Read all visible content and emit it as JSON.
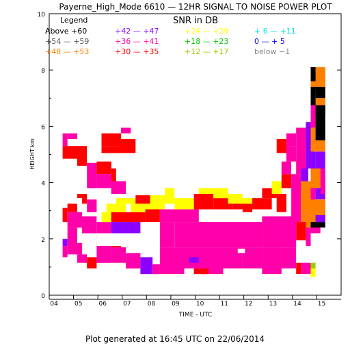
{
  "chart_data": {
    "type": "heatmap",
    "title": "Payerne_High_Mode 6610 — 12HR SIGNAL TO NOISE POWER PLOT",
    "subtitle": "SNR in DB",
    "xlabel": "TIME - UTC",
    "ylabel": "HEIGHT km",
    "xlim": [
      3.8,
      15.8
    ],
    "ylim": [
      0,
      10
    ],
    "x_tick_labels": [
      "04",
      "05",
      "06",
      "07",
      "08",
      "09",
      "10",
      "11",
      "12",
      "13",
      "14",
      "15"
    ],
    "y_tick_labels": [
      "0",
      "2",
      "4",
      "6",
      "8",
      "10"
    ],
    "legend_title": "Legend",
    "legend": [
      {
        "label": "Above +60",
        "color": "#000000"
      },
      {
        "label": "+54 — +59",
        "color": "#555555"
      },
      {
        "label": "+48 — +53",
        "color": "#ff7f00"
      },
      {
        "label": "+42 — +47",
        "color": "#8b00ff"
      },
      {
        "label": "+36 — +41",
        "color": "#ff00aa"
      },
      {
        "label": "+30 — +35",
        "color": "#ff0000"
      },
      {
        "label": "+24 — +29",
        "color": "#ffff00"
      },
      {
        "label": "+18 — +23",
        "color": "#00cc00"
      },
      {
        "label": "+12 — +17",
        "color": "#99cc00"
      },
      {
        "label": "+ 6 — +11",
        "color": "#00e5e5"
      },
      {
        "label": "0 — + 5",
        "color": "#0000ff"
      },
      {
        "label": "below −1",
        "color": "#888888"
      }
    ],
    "cells": [
      {
        "x": [
          4.35,
          4.55
        ],
        "y": [
          5.3,
          5.75
        ],
        "c": 4
      },
      {
        "x": [
          4.55,
          4.95
        ],
        "y": [
          5.55,
          5.75
        ],
        "c": 4
      },
      {
        "x": [
          4.35,
          4.95
        ],
        "y": [
          4.85,
          5.3
        ],
        "c": 5
      },
      {
        "x": [
          4.95,
          5.35
        ],
        "y": [
          4.6,
          5.3
        ],
        "c": 5
      },
      {
        "x": [
          5.35,
          5.75
        ],
        "y": [
          3.8,
          4.7
        ],
        "c": 4
      },
      {
        "x": [
          5.75,
          6.35
        ],
        "y": [
          4.3,
          4.75
        ],
        "c": 5
      },
      {
        "x": [
          6.35,
          6.55
        ],
        "y": [
          4.05,
          4.5
        ],
        "c": 5
      },
      {
        "x": [
          5.75,
          6.35
        ],
        "y": [
          3.8,
          4.3
        ],
        "c": 4
      },
      {
        "x": [
          6.35,
          6.95
        ],
        "y": [
          3.6,
          4.05
        ],
        "c": 4
      },
      {
        "x": [
          5.95,
          6.75
        ],
        "y": [
          5.3,
          5.75
        ],
        "c": 5
      },
      {
        "x": [
          6.75,
          7.35
        ],
        "y": [
          5.05,
          5.55
        ],
        "c": 5
      },
      {
        "x": [
          5.95,
          6.75
        ],
        "y": [
          5.05,
          5.3
        ],
        "c": 5
      },
      {
        "x": [
          6.75,
          7.15
        ],
        "y": [
          5.75,
          5.95
        ],
        "c": 4
      },
      {
        "x": [
          4.95,
          5.35
        ],
        "y": [
          3.25,
          3.6
        ],
        "c": 5
      },
      {
        "x": [
          5.35,
          5.75
        ],
        "y": [
          2.95,
          3.4
        ],
        "c": 4
      },
      {
        "x": [
          4.55,
          4.95
        ],
        "y": [
          2.95,
          3.25
        ],
        "c": 5
      },
      {
        "x": [
          4.35,
          4.55
        ],
        "y": [
          2.6,
          3.1
        ],
        "c": 5
      },
      {
        "x": [
          4.55,
          5.15
        ],
        "y": [
          2.4,
          2.95
        ],
        "c": 4
      },
      {
        "x": [
          5.15,
          5.75
        ],
        "y": [
          2.2,
          2.8
        ],
        "c": 4
      },
      {
        "x": [
          4.55,
          4.95
        ],
        "y": [
          1.85,
          2.4
        ],
        "c": 4
      },
      {
        "x": [
          4.35,
          4.55
        ],
        "y": [
          1.75,
          2.0
        ],
        "c": 3
      },
      {
        "x": [
          4.35,
          4.55
        ],
        "y": [
          1.35,
          1.75
        ],
        "c": 4
      },
      {
        "x": [
          4.55,
          5.15
        ],
        "y": [
          1.45,
          1.85
        ],
        "c": 4
      },
      {
        "x": [
          4.95,
          5.35
        ],
        "y": [
          1.15,
          1.45
        ],
        "c": 4
      },
      {
        "x": [
          5.35,
          5.75
        ],
        "y": [
          0.95,
          1.35
        ],
        "c": 5
      },
      {
        "x": [
          5.75,
          6.35
        ],
        "y": [
          1.15,
          2.2
        ],
        "c": 4
      },
      {
        "x": [
          6.35,
          6.95
        ],
        "y": [
          1.15,
          1.7
        ],
        "c": 4
      },
      {
        "x": [
          6.95,
          7.55
        ],
        "y": [
          0.95,
          1.5
        ],
        "c": 4
      },
      {
        "x": [
          7.55,
          8.05
        ],
        "y": [
          0.75,
          1.35
        ],
        "c": 3
      },
      {
        "x": [
          8.05,
          8.35
        ],
        "y": [
          0.75,
          1.1
        ],
        "c": 4
      },
      {
        "x": [
          6.35,
          6.75
        ],
        "y": [
          1.7,
          1.95
        ],
        "c": 5
      },
      {
        "x": [
          5.75,
          6.35
        ],
        "y": [
          2.2,
          2.6
        ],
        "c": 4
      },
      {
        "x": [
          6.35,
          7.55
        ],
        "y": [
          2.2,
          2.6
        ],
        "c": 3
      },
      {
        "x": [
          5.95,
          6.35
        ],
        "y": [
          2.6,
          2.95
        ],
        "c": 6
      },
      {
        "x": [
          6.35,
          7.75
        ],
        "y": [
          2.6,
          2.95
        ],
        "c": 5
      },
      {
        "x": [
          6.15,
          6.95
        ],
        "y": [
          2.95,
          3.25
        ],
        "c": 6
      },
      {
        "x": [
          6.55,
          7.15
        ],
        "y": [
          3.25,
          3.45
        ],
        "c": 6
      },
      {
        "x": [
          7.15,
          7.95
        ],
        "y": [
          2.95,
          3.45
        ],
        "c": 6
      },
      {
        "x": [
          7.35,
          7.95
        ],
        "y": [
          3.25,
          3.55
        ],
        "c": 5
      },
      {
        "x": [
          7.95,
          8.55
        ],
        "y": [
          3.05,
          3.55
        ],
        "c": 6
      },
      {
        "x": [
          8.55,
          8.95
        ],
        "y": [
          3.25,
          3.8
        ],
        "c": 6
      },
      {
        "x": [
          7.75,
          8.35
        ],
        "y": [
          2.6,
          3.05
        ],
        "c": 5
      },
      {
        "x": [
          8.35,
          9.95
        ],
        "y": [
          2.6,
          3.05
        ],
        "c": 4
      },
      {
        "x": [
          8.95,
          9.75
        ],
        "y": [
          3.05,
          3.45
        ],
        "c": 6
      },
      {
        "x": [
          9.75,
          10.55
        ],
        "y": [
          3.05,
          3.6
        ],
        "c": 5
      },
      {
        "x": [
          9.95,
          10.55
        ],
        "y": [
          3.6,
          3.8
        ],
        "c": 6
      },
      {
        "x": [
          10.55,
          11.35
        ],
        "y": [
          3.05,
          3.45
        ],
        "c": 5
      },
      {
        "x": [
          10.55,
          11.15
        ],
        "y": [
          3.45,
          3.8
        ],
        "c": 6
      },
      {
        "x": [
          11.15,
          11.75
        ],
        "y": [
          3.25,
          3.6
        ],
        "c": 6
      },
      {
        "x": [
          11.35,
          12.15
        ],
        "y": [
          3.05,
          3.25
        ],
        "c": 5
      },
      {
        "x": [
          11.55,
          12.55
        ],
        "y": [
          3.25,
          3.45
        ],
        "c": 6
      },
      {
        "x": [
          11.75,
          12.15
        ],
        "y": [
          2.95,
          3.05
        ],
        "c": 5
      },
      {
        "x": [
          12.15,
          12.95
        ],
        "y": [
          3.05,
          3.45
        ],
        "c": 5
      },
      {
        "x": [
          12.55,
          13.15
        ],
        "y": [
          3.45,
          3.8
        ],
        "c": 5
      },
      {
        "x": [
          13.15,
          13.55
        ],
        "y": [
          2.95,
          3.6
        ],
        "c": 5
      },
      {
        "x": [
          12.95,
          13.35
        ],
        "y": [
          3.6,
          4.05
        ],
        "c": 6
      },
      {
        "x": [
          13.35,
          13.75
        ],
        "y": [
          3.8,
          4.3
        ],
        "c": 5
      },
      {
        "x": [
          13.75,
          14.15
        ],
        "y": [
          3.6,
          4.3
        ],
        "c": 4
      },
      {
        "x": [
          13.35,
          13.75
        ],
        "y": [
          4.3,
          4.75
        ],
        "c": 4
      },
      {
        "x": [
          13.55,
          13.95
        ],
        "y": [
          4.75,
          5.3
        ],
        "c": 4
      },
      {
        "x": [
          13.15,
          13.55
        ],
        "y": [
          5.05,
          5.55
        ],
        "c": 5
      },
      {
        "x": [
          13.95,
          14.35
        ],
        "y": [
          4.3,
          5.95
        ],
        "c": 4
      },
      {
        "x": [
          13.55,
          13.95
        ],
        "y": [
          5.3,
          5.75
        ],
        "c": 4
      },
      {
        "x": [
          14.15,
          14.45
        ],
        "y": [
          4.05,
          4.5
        ],
        "c": 3
      },
      {
        "x": [
          14.35,
          14.65
        ],
        "y": [
          4.5,
          6.15
        ],
        "c": 3
      },
      {
        "x": [
          13.75,
          14.15
        ],
        "y": [
          2.6,
          3.6
        ],
        "c": 4
      },
      {
        "x": [
          14.15,
          14.55
        ],
        "y": [
          2.4,
          4.05
        ],
        "c": 2
      },
      {
        "x": [
          14.55,
          14.75
        ],
        "y": [
          2.6,
          4.5
        ],
        "c": 4
      },
      {
        "x": [
          13.95,
          14.35
        ],
        "y": [
          1.95,
          2.6
        ],
        "c": 5
      },
      {
        "x": [
          14.35,
          14.55
        ],
        "y": [
          1.75,
          2.4
        ],
        "c": 4
      },
      {
        "x": [
          8.35,
          8.95
        ],
        "y": [
          1.7,
          2.6
        ],
        "c": 4
      },
      {
        "x": [
          8.95,
          12.55
        ],
        "y": [
          1.7,
          2.6
        ],
        "c": 4
      },
      {
        "x": [
          12.55,
          13.95
        ],
        "y": [
          1.7,
          2.8
        ],
        "c": 4
      },
      {
        "x": [
          8.35,
          9.35
        ],
        "y": [
          0.75,
          1.7
        ],
        "c": 4
      },
      {
        "x": [
          9.35,
          10.15
        ],
        "y": [
          0.95,
          1.7
        ],
        "c": 4
      },
      {
        "x": [
          9.55,
          9.95
        ],
        "y": [
          1.15,
          1.35
        ],
        "c": 3
      },
      {
        "x": [
          10.15,
          10.95
        ],
        "y": [
          0.75,
          1.7
        ],
        "c": 4
      },
      {
        "x": [
          9.75,
          10.35
        ],
        "y": [
          0.75,
          0.95
        ],
        "c": 5
      },
      {
        "x": [
          10.95,
          11.75
        ],
        "y": [
          0.95,
          1.7
        ],
        "c": 4
      },
      {
        "x": [
          11.75,
          12.55
        ],
        "y": [
          0.95,
          1.7
        ],
        "c": 4
      },
      {
        "x": [
          12.55,
          13.35
        ],
        "y": [
          0.75,
          1.7
        ],
        "c": 4
      },
      {
        "x": [
          13.35,
          13.95
        ],
        "y": [
          0.95,
          1.7
        ],
        "c": 4
      },
      {
        "x": [
          13.95,
          14.15
        ],
        "y": [
          0.75,
          1.15
        ],
        "c": 5
      },
      {
        "x": [
          14.15,
          14.55
        ],
        "y": [
          0.75,
          1.15
        ],
        "c": 4
      },
      {
        "x": [
          14.55,
          14.75
        ],
        "y": [
          0.65,
          0.95
        ],
        "c": 6
      },
      {
        "x": [
          14.55,
          14.75
        ],
        "y": [
          0.95,
          1.15
        ],
        "c": 8
      },
      {
        "x": [
          14.55,
          14.95
        ],
        "y": [
          2.2,
          2.6
        ],
        "c": 4
      },
      {
        "x": [
          14.55,
          15.15
        ],
        "y": [
          7.2,
          8.1
        ],
        "c": 2
      },
      {
        "x": [
          14.55,
          14.75
        ],
        "y": [
          7.6,
          8.1
        ],
        "c": 0
      },
      {
        "x": [
          14.75,
          15.15
        ],
        "y": [
          7.0,
          7.4
        ],
        "c": 0
      },
      {
        "x": [
          14.55,
          15.15
        ],
        "y": [
          6.75,
          7.0
        ],
        "c": 2
      },
      {
        "x": [
          14.55,
          14.75
        ],
        "y": [
          6.75,
          7.4
        ],
        "c": 0
      },
      {
        "x": [
          14.55,
          15.15
        ],
        "y": [
          6.35,
          6.75
        ],
        "c": 4
      },
      {
        "x": [
          14.55,
          14.75
        ],
        "y": [
          5.95,
          6.35
        ],
        "c": 4
      },
      {
        "x": [
          14.75,
          15.15
        ],
        "y": [
          5.95,
          6.75
        ],
        "c": 0
      },
      {
        "x": [
          14.55,
          14.75
        ],
        "y": [
          5.5,
          5.95
        ],
        "c": 2
      },
      {
        "x": [
          14.75,
          15.15
        ],
        "y": [
          5.5,
          5.95
        ],
        "c": 0
      },
      {
        "x": [
          14.55,
          14.75
        ],
        "y": [
          5.1,
          5.5
        ],
        "c": 2
      },
      {
        "x": [
          14.75,
          15.15
        ],
        "y": [
          5.1,
          5.5
        ],
        "c": 2
      },
      {
        "x": [
          14.55,
          14.75
        ],
        "y": [
          4.5,
          5.1
        ],
        "c": 3
      },
      {
        "x": [
          14.75,
          15.15
        ],
        "y": [
          4.5,
          5.1
        ],
        "c": 3
      },
      {
        "x": [
          14.55,
          15.15
        ],
        "y": [
          3.8,
          4.5
        ],
        "c": 2
      },
      {
        "x": [
          14.75,
          15.15
        ],
        "y": [
          3.4,
          3.8
        ],
        "c": 3
      },
      {
        "x": [
          14.55,
          15.15
        ],
        "y": [
          2.6,
          3.4
        ],
        "c": 2
      },
      {
        "x": [
          14.55,
          14.75
        ],
        "y": [
          2.4,
          2.6
        ],
        "c": 0
      },
      {
        "x": [
          14.75,
          15.15
        ],
        "y": [
          2.4,
          2.6
        ],
        "c": 0
      },
      {
        "x": [
          14.75,
          15.15
        ],
        "y": [
          2.6,
          2.85
        ],
        "c": 3
      },
      {
        "x": [
          14.95,
          15.15
        ],
        "y": [
          4.05,
          4.5
        ],
        "c": 4
      },
      {
        "x": [
          14.95,
          15.15
        ],
        "y": [
          3.6,
          4.05
        ],
        "c": 4
      }
    ]
  },
  "footer": "Plot generated at 16:45 UTC on 22/06/2014"
}
